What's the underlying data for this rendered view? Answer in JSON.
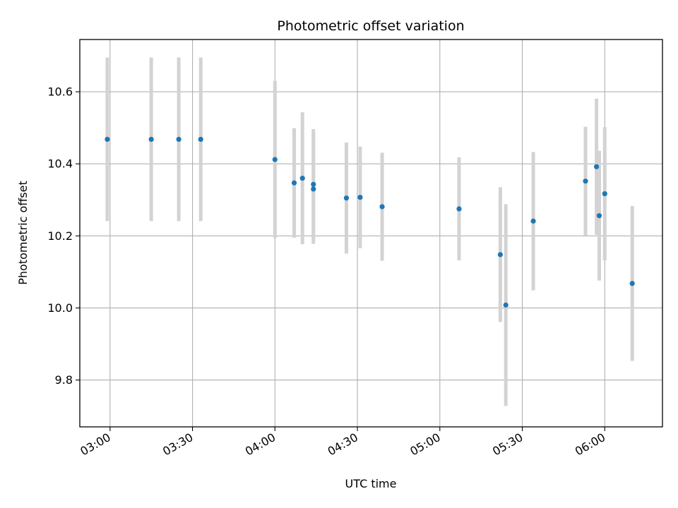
{
  "chart_data": {
    "type": "scatter",
    "title": "Photometric offset variation",
    "xlabel": "UTC time",
    "ylabel": "Photometric offset",
    "x_unit": "UTC time (HH:MM)",
    "xlim": [
      "02:49",
      "06:21"
    ],
    "ylim": [
      9.67,
      10.745
    ],
    "x_ticks": [
      "03:00",
      "03:30",
      "04:00",
      "04:30",
      "05:00",
      "05:30",
      "06:00"
    ],
    "y_ticks": [
      9.8,
      10.0,
      10.2,
      10.4,
      10.6
    ],
    "y_tick_labels": [
      "9.8",
      "10.0",
      "10.2",
      "10.4",
      "10.6"
    ],
    "grid": true,
    "x_tick_rotation": "30 degrees",
    "colors": {
      "points": "#1f77b4",
      "errorbars": "#d3d3d3",
      "grid": "#b0b0b0"
    },
    "series": [
      {
        "points": [
          {
            "x": "02:59",
            "y": 10.468,
            "err": 0.227
          },
          {
            "x": "03:15",
            "y": 10.468,
            "err": 0.227
          },
          {
            "x": "03:25",
            "y": 10.468,
            "err": 0.227
          },
          {
            "x": "03:33",
            "y": 10.468,
            "err": 0.227
          },
          {
            "x": "04:00",
            "y": 10.412,
            "err": 0.218
          },
          {
            "x": "04:07",
            "y": 10.347,
            "err": 0.152
          },
          {
            "x": "04:10",
            "y": 10.36,
            "err": 0.183
          },
          {
            "x": "04:14",
            "y": 10.343,
            "err": 0.153
          },
          {
            "x": "04:14",
            "y": 10.33,
            "err": 0.152
          },
          {
            "x": "04:26",
            "y": 10.305,
            "err": 0.154
          },
          {
            "x": "04:31",
            "y": 10.307,
            "err": 0.141
          },
          {
            "x": "04:39",
            "y": 10.281,
            "err": 0.15
          },
          {
            "x": "05:07",
            "y": 10.275,
            "err": 0.143
          },
          {
            "x": "05:22",
            "y": 10.148,
            "err": 0.187
          },
          {
            "x": "05:24",
            "y": 10.008,
            "err": 0.28
          },
          {
            "x": "05:34",
            "y": 10.241,
            "err": 0.192
          },
          {
            "x": "05:53",
            "y": 10.352,
            "err": 0.151
          },
          {
            "x": "05:57",
            "y": 10.392,
            "err": 0.189
          },
          {
            "x": "05:58",
            "y": 10.256,
            "err": 0.18
          },
          {
            "x": "06:00",
            "y": 10.317,
            "err": 0.185
          },
          {
            "x": "06:10",
            "y": 10.068,
            "err": 0.215
          }
        ]
      }
    ]
  }
}
